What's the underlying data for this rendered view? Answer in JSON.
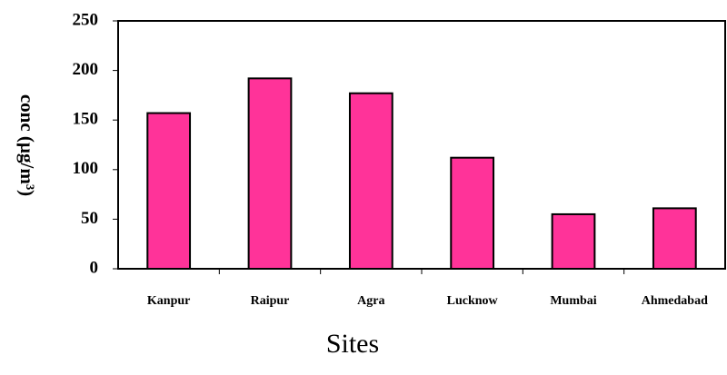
{
  "chart_data": {
    "type": "bar",
    "x_label": "Sites",
    "y_label": "conc (µg/m³)",
    "categories": [
      "Kanpur",
      "Raipur",
      "Agra",
      "Lucknow",
      "Mumbai",
      "Ahmedabad"
    ],
    "values": [
      157,
      192,
      177,
      112,
      55,
      61
    ],
    "color": "#ff3399",
    "ylim": [
      0,
      250
    ],
    "yticks": [
      0,
      50,
      100,
      150,
      200,
      250
    ],
    "grid": false
  }
}
